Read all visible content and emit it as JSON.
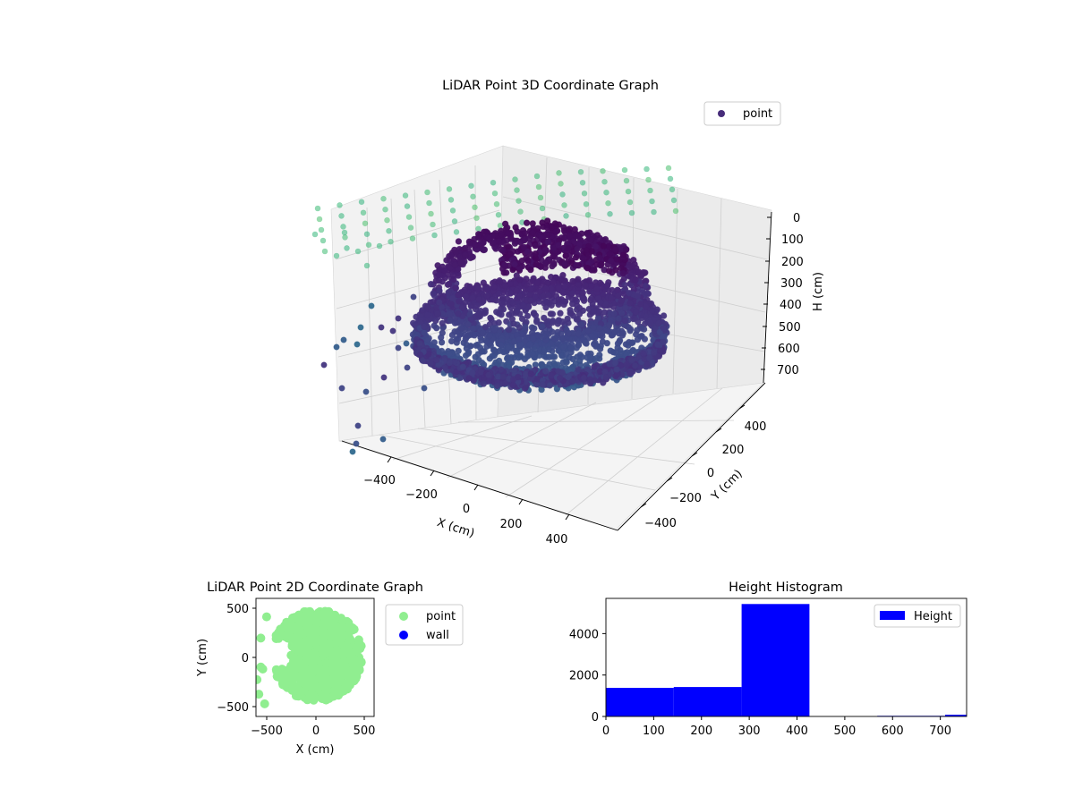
{
  "figure": {
    "background": "#ffffff"
  },
  "chart_data": [
    {
      "type": "scatter3d",
      "title": "LiDAR Point 3D Coordinate Graph",
      "xlabel": "X (cm)",
      "ylabel": "Y (cm)",
      "zlabel": "H (cm)",
      "xticks": [
        "−400",
        "−200",
        "0",
        "200",
        "400"
      ],
      "yticks": [
        "−400",
        "−200",
        "0",
        "200",
        "400"
      ],
      "zticks": [
        "0",
        "100",
        "200",
        "300",
        "400",
        "500",
        "600",
        "700"
      ],
      "xlim": [
        -550,
        550
      ],
      "ylim": [
        -550,
        550
      ],
      "zlim": [
        0,
        750
      ],
      "z_inverted": true,
      "grid": true,
      "legend": {
        "position": "top-right",
        "entries": [
          {
            "label": "point",
            "color": "#472c7a"
          }
        ]
      },
      "colormap": "viridis",
      "series": [
        {
          "name": "point",
          "shape": "ring of points ~r 450 cm",
          "h_range": [
            300,
            420
          ],
          "count_approx": 5500
        },
        {
          "name": "point",
          "shape": "ceiling grid",
          "h_range": [
            0,
            140
          ]
        },
        {
          "name": "point",
          "shape": "scattered mid-level points",
          "h_range": [
            140,
            290
          ]
        }
      ]
    },
    {
      "type": "scatter",
      "title": "LiDAR Point 2D Coordinate Graph",
      "xlabel": "X (cm)",
      "ylabel": "Y (cm)",
      "xticks": [
        "−500",
        "0",
        "500"
      ],
      "yticks": [
        "−500",
        "0",
        "500"
      ],
      "xlim": [
        -610,
        610
      ],
      "ylim": [
        -610,
        610
      ],
      "legend": {
        "position": "outside-right",
        "entries": [
          {
            "label": "point",
            "color": "#90ee90"
          },
          {
            "label": "wall",
            "color": "#0000ff"
          }
        ]
      },
      "series": [
        {
          "name": "point",
          "color": "#90ee90",
          "shape": "filled disc radius ~460 cm, notch on left side"
        },
        {
          "name": "wall",
          "color": "#0000ff",
          "points": []
        }
      ]
    },
    {
      "type": "bar",
      "title": "Height Histogram",
      "xticks": [
        "0",
        "100",
        "200",
        "300",
        "400",
        "500",
        "600",
        "700"
      ],
      "yticks": [
        "0",
        "2000",
        "4000"
      ],
      "xlim": [
        0,
        755
      ],
      "ylim": [
        0,
        5700
      ],
      "legend": {
        "position": "top-right",
        "entries": [
          {
            "label": "Height",
            "color": "#0000ff"
          }
        ]
      },
      "series": [
        {
          "name": "Height",
          "color": "#0000ff",
          "bins": [
            {
              "x0": 0,
              "x1": 142,
              "value": 1380
            },
            {
              "x0": 142,
              "x1": 284,
              "value": 1420
            },
            {
              "x0": 284,
              "x1": 426,
              "value": 5430
            },
            {
              "x0": 426,
              "x1": 568,
              "value": 0
            },
            {
              "x0": 568,
              "x1": 710,
              "value": 30
            },
            {
              "x0": 710,
              "x1": 755,
              "value": 80
            }
          ]
        }
      ]
    }
  ]
}
